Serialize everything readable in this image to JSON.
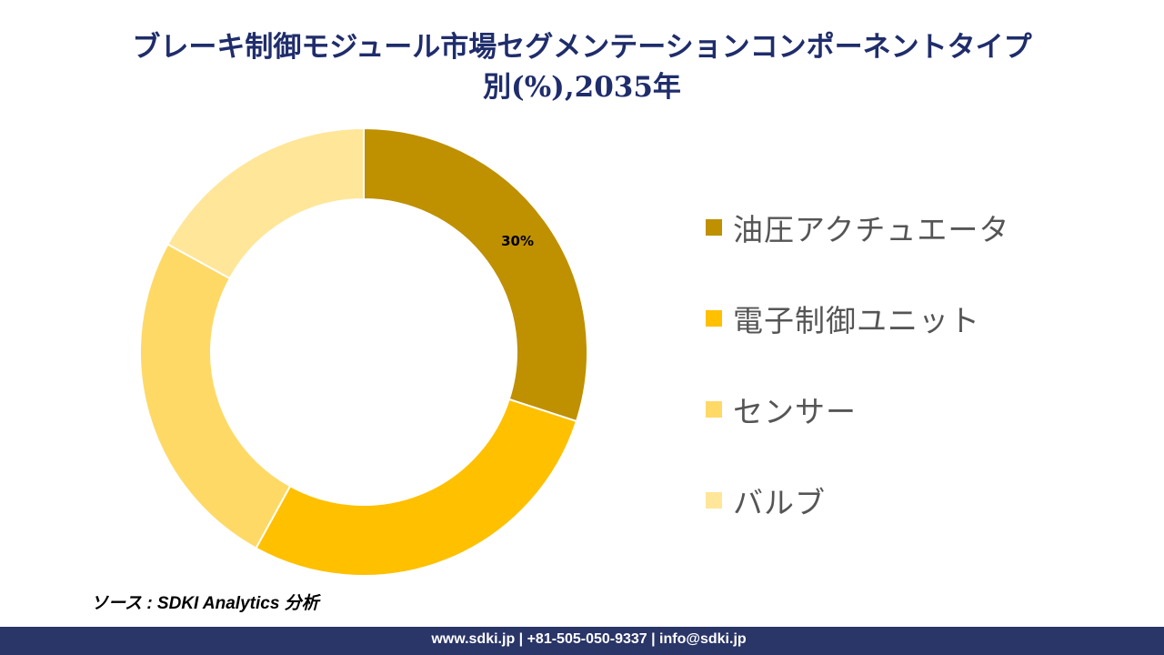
{
  "chart_data": {
    "type": "pie",
    "subtype": "donut",
    "title_line1": "ブレーキ制御モジュール市場セグメンテーションコンポーネントタイプ",
    "title_line2": "別(%),2035年",
    "categories": [
      "油圧アクチュエータ",
      "電子制御ユニット",
      "センサー",
      "バルブ"
    ],
    "values": [
      30,
      28,
      25,
      17
    ],
    "data_labels": [
      "30%",
      "",
      "",
      ""
    ],
    "colors": [
      "#BF9000",
      "#FFC000",
      "#FFD966",
      "#FFE699"
    ],
    "legend_position": "right"
  },
  "source": "ソース : SDKI Analytics 分析",
  "footer": "www.sdki.jp | +81-505-050-9337 | info@sdki.jp"
}
